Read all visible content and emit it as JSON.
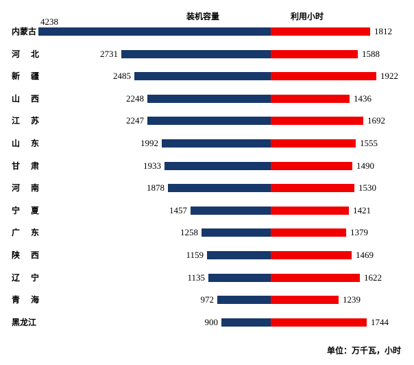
{
  "labels": {
    "capacity_header": "装机容量",
    "hours_header": "利用小时",
    "unit_note": "单位：万千瓦，小时"
  },
  "colors": {
    "capacity_bar": "#17386B",
    "hours_bar": "#F20000",
    "text": "#000000",
    "background": "#FFFFFF"
  },
  "chart_data": {
    "type": "bar",
    "subtype": "diverging-horizontal",
    "orientation": "horizontal",
    "grid": false,
    "axes_visible": false,
    "legend_position": "top-inline-headers",
    "categories": [
      "内蒙古",
      "河北",
      "新疆",
      "山西",
      "江苏",
      "山东",
      "甘肃",
      "河南",
      "宁夏",
      "广东",
      "陕西",
      "辽宁",
      "青海",
      "黑龙江"
    ],
    "series": [
      {
        "name": "装机容量",
        "side": "left",
        "color": "#17386B",
        "values": [
          4238,
          2731,
          2485,
          2248,
          2247,
          1992,
          1933,
          1878,
          1457,
          1258,
          1159,
          1135,
          972,
          900
        ]
      },
      {
        "name": "利用小时",
        "side": "right",
        "color": "#F20000",
        "values": [
          1812,
          1588,
          1922,
          1436,
          1692,
          1555,
          1490,
          1530,
          1421,
          1379,
          1469,
          1622,
          1239,
          1744
        ]
      }
    ],
    "value_labels_shown": true,
    "unit_note": "单位：万千瓦，小时"
  }
}
